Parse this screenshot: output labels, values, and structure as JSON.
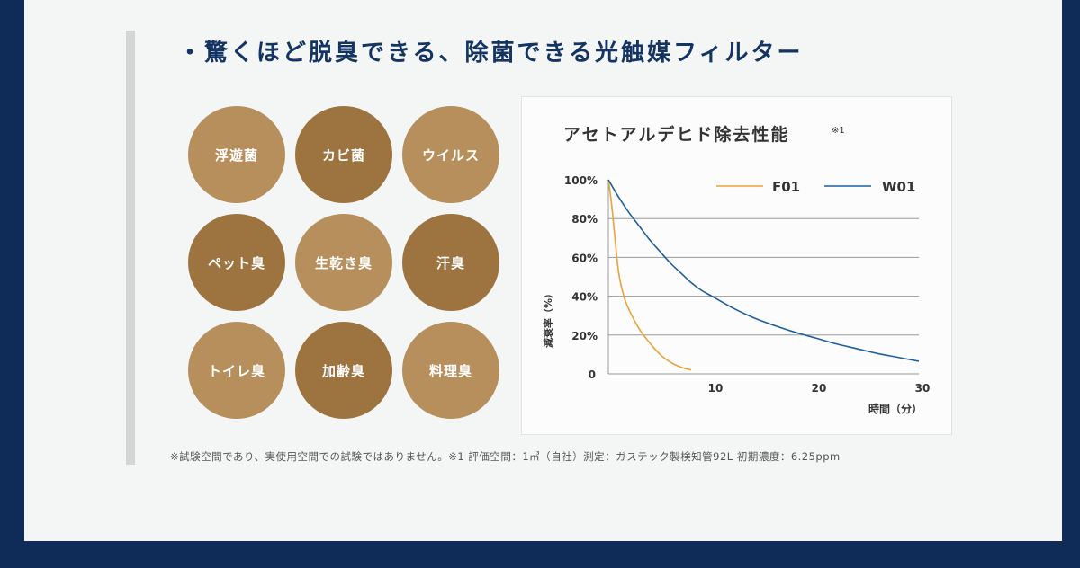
{
  "heading": "・驚くほど脱臭できる、除菌できる光触媒フィルター",
  "targets": [
    "浮遊菌",
    "カビ菌",
    "ウイルス",
    "ペット臭",
    "生乾き臭",
    "汗臭",
    "トイレ臭",
    "加齢臭",
    "料理臭"
  ],
  "footnote": "※試験空間であり、実使用空間での試験ではありません。※1 評価空間：1㎥（自社）測定：ガステック製検知管92L 初期濃度：6.25ppm",
  "colors": {
    "navy": "#0f2b57",
    "title": "#143563",
    "circle_light": "#b68f5c",
    "circle_dark": "#9d7440",
    "f01": "#e8a33a",
    "w01": "#1f5f9e"
  },
  "chart_data": {
    "type": "line",
    "title": "アセトアルデヒド除去性能",
    "title_note": "※1",
    "ylabel": "減衰率（%）",
    "xlabel": "時間（分）",
    "xlim": [
      0,
      30
    ],
    "ylim": [
      0,
      100
    ],
    "x_ticks": [
      "10",
      "20",
      "30"
    ],
    "y_ticks": [
      "0",
      "20%",
      "40%",
      "60%",
      "80%",
      "100%"
    ],
    "y_tick_values": [
      0,
      20,
      40,
      60,
      80,
      100
    ],
    "x_tick_values": [
      10,
      20,
      30
    ],
    "gridlines": true,
    "series": [
      {
        "name": "F01",
        "color": "#e8a33a",
        "x": [
          0,
          0.3,
          0.6,
          1,
          1.5,
          2,
          3,
          4,
          5,
          6,
          7,
          8
        ],
        "y": [
          100,
          88,
          72,
          52,
          40,
          33,
          23,
          16,
          10,
          6,
          3.5,
          2
        ]
      },
      {
        "name": "W01",
        "color": "#1f5f9e",
        "x": [
          0,
          1,
          2,
          3,
          4,
          5,
          6,
          7,
          8,
          9,
          10,
          12,
          14,
          16,
          18,
          20,
          22,
          24,
          26,
          28,
          30
        ],
        "y": [
          100,
          91,
          83,
          76,
          69,
          63,
          57,
          52,
          47,
          43,
          40,
          34,
          29,
          25,
          21.5,
          18.5,
          15.5,
          13,
          10.5,
          8.5,
          6.5
        ]
      }
    ]
  }
}
